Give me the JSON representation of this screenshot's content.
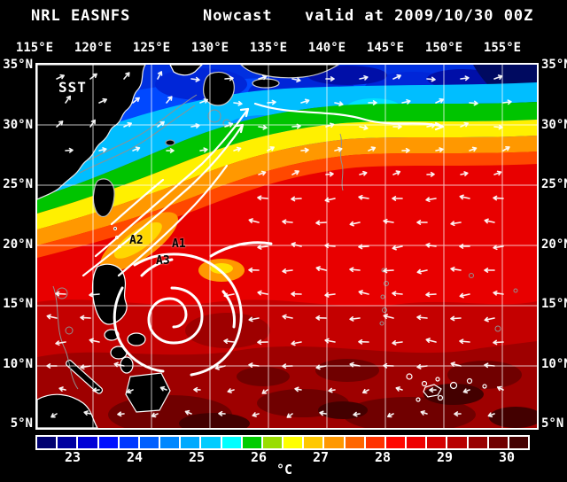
{
  "title": {
    "model": "NRL EASNFS",
    "product": "Nowcast",
    "valid": "valid at 2009/10/30 00Z"
  },
  "map": {
    "variable_label": "SST",
    "lon_labels": [
      "115°E",
      "120°E",
      "125°E",
      "130°E",
      "135°E",
      "140°E",
      "145°E",
      "150°E",
      "155°E"
    ],
    "lat_labels": [
      "35°N",
      "30°N",
      "25°N",
      "20°N",
      "15°N",
      "10°N",
      "5°N"
    ],
    "annotations": [
      {
        "label": "A1"
      },
      {
        "label": "A2"
      },
      {
        "label": "A3"
      }
    ]
  },
  "colorbar": {
    "unit": "°C",
    "tick_labels": [
      "23",
      "24",
      "25",
      "26",
      "27",
      "28",
      "29",
      "30"
    ],
    "segment_colors": [
      "#000070",
      "#0000A0",
      "#0000D6",
      "#0010FF",
      "#0038FF",
      "#0060FF",
      "#0088FF",
      "#00AAFF",
      "#00CCFF",
      "#00FFFF",
      "#00CC00",
      "#99DD00",
      "#FFFF00",
      "#FFC800",
      "#FF9800",
      "#FF6600",
      "#FF3300",
      "#FF0800",
      "#EE0000",
      "#D40000",
      "#B80000",
      "#980000",
      "#700000",
      "#440000"
    ]
  },
  "colors": {
    "background": "#000000",
    "grid": "#FFFFFF",
    "vectors": "#FFFFFF",
    "land": "#000000",
    "coastline": "#FFFFFF",
    "contour": "#909090"
  }
}
